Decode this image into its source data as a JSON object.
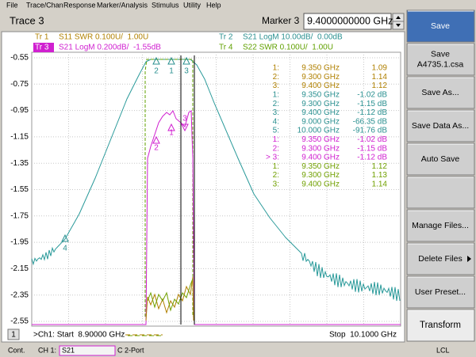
{
  "menu": [
    "File",
    "Trace/Chan",
    "Response",
    "Marker/Analysis",
    "Stimulus",
    "Utility",
    "Help"
  ],
  "header": {
    "active_trace": "Trace 3",
    "marker_label": "Marker 3",
    "marker_value": "9.4000000000 GHz"
  },
  "plot": {
    "y_labels": [
      "-0.55",
      "-0.75",
      "-0.95",
      "-1.15",
      "-1.35",
      "-1.55",
      "-1.75",
      "-1.95",
      "-2.15",
      "-2.35",
      "-2.55"
    ],
    "traces": [
      {
        "id": "Tr 1",
        "desc": "S11 SWR 0.100U/  1.00U"
      },
      {
        "id": "Tr 3",
        "desc": "S21 LogM 0.200dB/  -1.55dB"
      },
      {
        "id": "Tr 2",
        "desc": "S21 LogM 10.00dB/  0.00dB"
      },
      {
        "id": "Tr 4",
        "desc": "S22 SWR 0.100U/  1.00U"
      }
    ],
    "marker_readouts": [
      {
        "rows": [
          {
            "id": "1:",
            "freq": "9.350 GHz",
            "value": "1.09"
          },
          {
            "id": "2:",
            "freq": "9.300 GHz",
            "value": "1.14"
          },
          {
            "id": "3:",
            "freq": "9.400 GHz",
            "value": "1.12"
          }
        ]
      },
      {
        "rows": [
          {
            "id": "1:",
            "freq": "9.350 GHz",
            "value": "-1.02 dB"
          },
          {
            "id": "2:",
            "freq": "9.300 GHz",
            "value": "-1.15 dB"
          },
          {
            "id": "3:",
            "freq": "9.400 GHz",
            "value": "-1.12 dB"
          },
          {
            "id": "4:",
            "freq": "9.000 GHz",
            "value": "-66.35 dB"
          },
          {
            "id": "5:",
            "freq": "10.000 GHz",
            "value": "-91.76 dB"
          }
        ]
      },
      {
        "rows": [
          {
            "id": "1:",
            "freq": "9.350 GHz",
            "value": "-1.02 dB"
          },
          {
            "id": "2:",
            "freq": "9.300 GHz",
            "value": "-1.15 dB"
          },
          {
            "id": "> 3:",
            "freq": "9.400 GHz",
            "value": "-1.12 dB"
          }
        ]
      },
      {
        "rows": [
          {
            "id": "1:",
            "freq": "9.350 GHz",
            "value": "1.12"
          },
          {
            "id": "2:",
            "freq": "9.300 GHz",
            "value": "1.13"
          },
          {
            "id": "3:",
            "freq": "9.400 GHz",
            "value": "1.14"
          }
        ]
      }
    ],
    "marker_tags": {
      "s21_wide": [
        "2",
        "1",
        "3",
        "4"
      ],
      "s21_fine": [
        "2",
        "1",
        "3"
      ]
    },
    "channel": "1",
    "start": ">Ch1: Start  8.90000 GHz",
    "stop": "Stop  10.1000 GHz"
  },
  "softkeys": [
    {
      "lines": [
        "Save"
      ]
    },
    {
      "lines": [
        "Save",
        "A4735.1.csa"
      ]
    },
    {
      "lines": [
        "Save As..."
      ]
    },
    {
      "lines": [
        "Save Data As..."
      ]
    },
    {
      "lines": [
        "Auto Save"
      ]
    },
    {
      "lines": []
    },
    {
      "lines": [
        "Manage Files..."
      ]
    },
    {
      "lines": [
        "Delete Files"
      ]
    },
    {
      "lines": [
        "User Preset..."
      ]
    },
    {
      "lines": [
        "Transform"
      ]
    }
  ],
  "status": {
    "mode": "Cont.",
    "channel": "CH 1:",
    "param": "S21",
    "cal": "C 2-Port",
    "ref": "LCL"
  }
}
